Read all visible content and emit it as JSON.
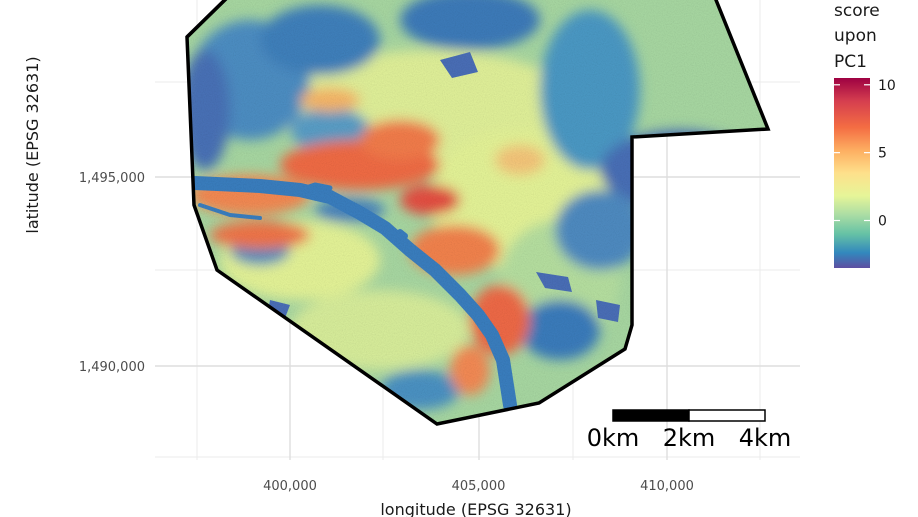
{
  "map": {
    "x_axis": {
      "title": "longitude (EPSG 32631)",
      "ticks": [
        {
          "value": 400000,
          "label": "400,000"
        },
        {
          "value": 405000,
          "label": "405,000"
        },
        {
          "value": 410000,
          "label": "410,000"
        }
      ]
    },
    "y_axis": {
      "title": "latitude (EPSG 32631)",
      "ticks": [
        {
          "value": 1495000,
          "label": "1,495,000"
        },
        {
          "value": 1490000,
          "label": "1,490,000"
        }
      ]
    },
    "legend": {
      "title_lines": [
        "score",
        "upon",
        "PC1"
      ],
      "range": [
        -3.5,
        10.5
      ],
      "ticks": [
        {
          "value": 10,
          "label": "10"
        },
        {
          "value": 5,
          "label": "5"
        },
        {
          "value": 0,
          "label": "0"
        }
      ],
      "colors": [
        "#5e4fa2",
        "#3288bd",
        "#66c2a5",
        "#abdda4",
        "#e6f598",
        "#fee08b",
        "#fdae61",
        "#f46d43",
        "#d53e4f",
        "#9e0142"
      ]
    },
    "scale_bar": {
      "labels": [
        "0km",
        "2km",
        "4km"
      ]
    },
    "river_color": "#3a7fc0",
    "boundary_color": "#000000"
  }
}
